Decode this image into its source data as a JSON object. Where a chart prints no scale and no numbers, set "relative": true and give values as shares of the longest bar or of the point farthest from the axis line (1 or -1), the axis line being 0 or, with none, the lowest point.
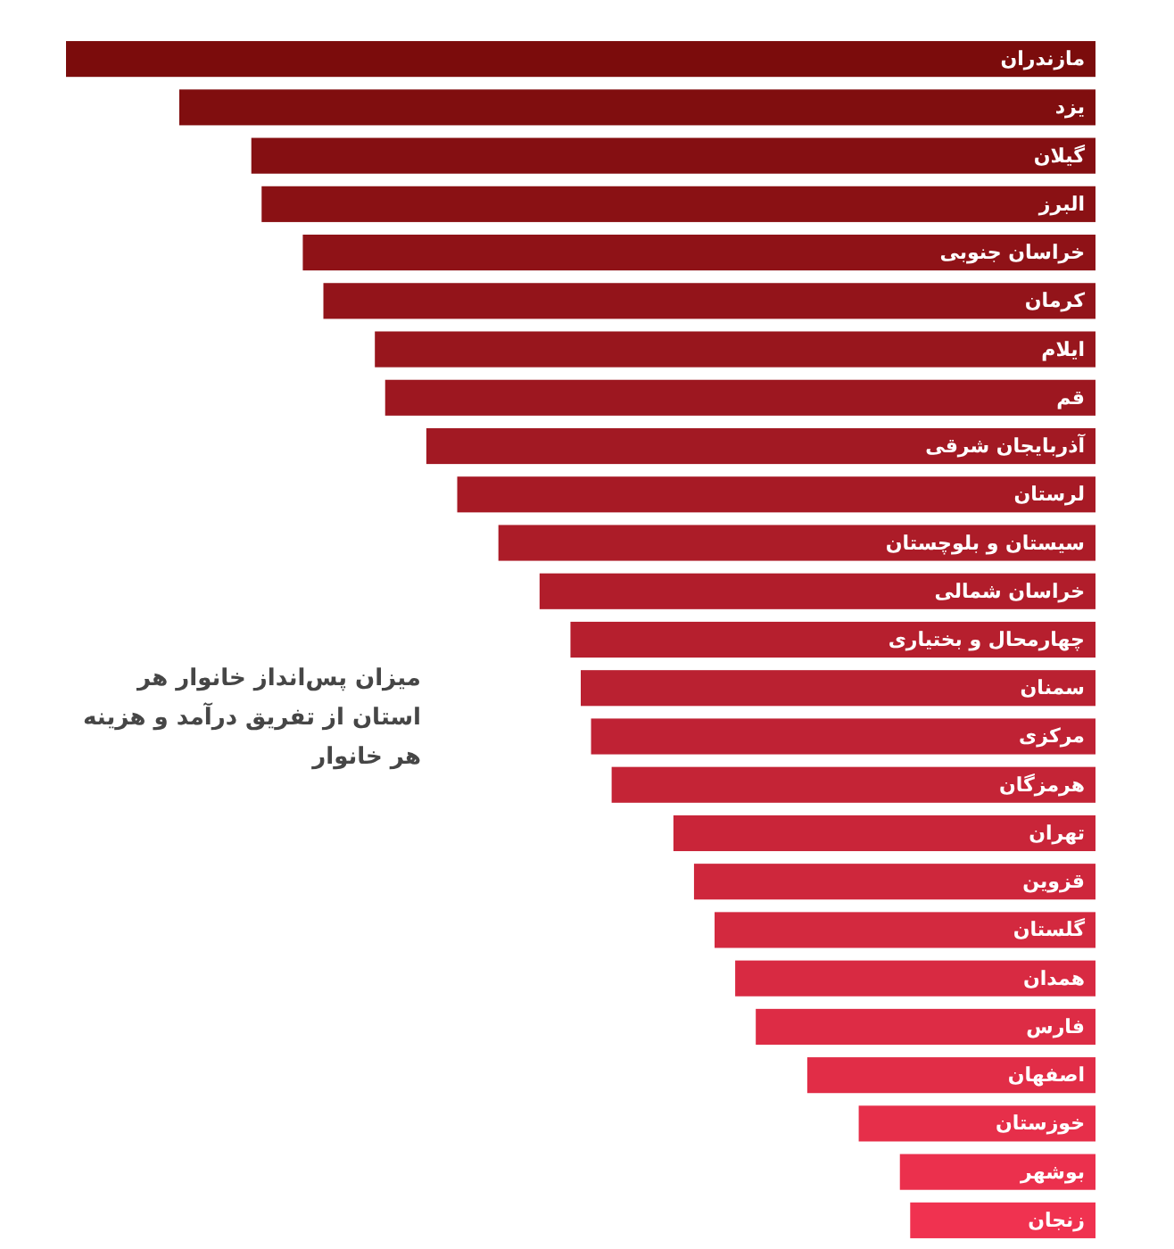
{
  "chart_data": {
    "type": "bar",
    "orientation": "horizontal",
    "relative": true,
    "categories": [
      "مازندران",
      "یزد",
      "گیلان",
      "البرز",
      "خراسان جنوبی",
      "کرمان",
      "ایلام",
      "قم",
      "آذربایجان شرقی",
      "لرستان",
      "سیستان و بلوچستان",
      "خراسان شمالی",
      "چهارمحال و بختیاری",
      "سمنان",
      "مرکزی",
      "هرمزگان",
      "تهران",
      "قزوین",
      "گلستان",
      "همدان",
      "فارس",
      "اصفهان",
      "خوزستان",
      "بوشهر",
      "زنجان"
    ],
    "values": [
      1,
      0.89,
      0.82,
      0.81,
      0.77,
      0.75,
      0.7,
      0.69,
      0.65,
      0.62,
      0.58,
      0.54,
      0.51,
      0.5,
      0.49,
      0.47,
      0.41,
      0.39,
      0.37,
      0.35,
      0.33,
      0.28,
      0.23,
      0.19,
      0.18
    ],
    "colors": [
      "#7b0c0c",
      "#800e0f",
      "#850f12",
      "#8a1114",
      "#8f1217",
      "#93141a",
      "#98161d",
      "#9d1720",
      "#a21923",
      "#a71a25",
      "#ac1c28",
      "#b11d2b",
      "#b61f2e",
      "#ba2131",
      "#bf2234",
      "#c42436",
      "#c92539",
      "#ce273c",
      "#d3293f",
      "#d82a42",
      "#dd2c45",
      "#e12d47",
      "#e62f4a",
      "#eb304d",
      "#f03250"
    ],
    "annotations": [
      "میزان پس‌انداز خانوار هر استان از تفریق درآمد و هزینه هر خانوار"
    ]
  }
}
